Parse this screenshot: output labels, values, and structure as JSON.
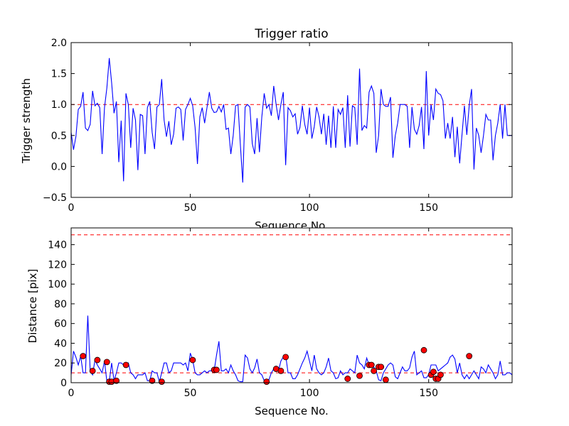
{
  "chart_data": [
    {
      "type": "line",
      "title": "Trigger ratio",
      "xlabel": "Sequence No.",
      "ylabel": "Trigger strength",
      "xlim": [
        0,
        185
      ],
      "ylim": [
        -0.5,
        2.0
      ],
      "xticks": [
        0,
        50,
        100,
        150
      ],
      "yticks": [
        -0.5,
        0.0,
        0.5,
        1.0,
        1.5,
        2.0
      ],
      "ytick_labels": [
        "−0.5",
        "0.0",
        "0.5",
        "1.0",
        "1.5",
        "2.0"
      ],
      "grid": false,
      "colors": {
        "series": "#0000ff",
        "threshold": "#ff0000"
      },
      "reference_lines": [
        {
          "y": 1.0,
          "style": "dashed",
          "color": "#ff0000"
        }
      ],
      "series": [
        {
          "x": [
            0,
            1,
            2,
            3,
            4,
            5,
            6,
            7,
            8,
            9,
            10,
            11,
            12,
            13,
            14,
            15,
            16,
            17,
            18,
            19,
            20,
            21,
            22,
            23,
            24,
            25,
            26,
            27,
            28,
            29,
            30,
            31,
            32,
            33,
            34,
            35,
            36,
            37,
            38,
            39,
            40,
            41,
            42,
            43,
            44,
            45,
            46,
            47,
            48,
            49,
            50,
            51,
            52,
            53,
            54,
            55,
            56,
            57,
            58,
            59,
            60,
            61,
            62,
            63,
            64,
            65,
            66,
            67,
            68,
            69,
            70,
            71,
            72,
            73,
            74,
            75,
            76,
            77,
            78,
            79,
            80,
            81,
            82,
            83,
            84,
            85,
            86,
            87,
            88,
            89,
            90,
            91,
            92,
            93,
            94,
            95,
            96,
            97,
            98,
            99,
            100,
            101,
            102,
            103,
            104,
            105,
            106,
            107,
            108,
            109,
            110,
            111,
            112,
            113,
            114,
            115,
            116,
            117,
            118,
            119,
            120,
            121,
            122,
            123,
            124,
            125,
            126,
            127,
            128,
            129,
            130,
            131,
            132,
            133,
            134,
            135,
            136,
            137,
            138,
            139,
            140,
            141,
            142,
            143,
            144,
            145,
            146,
            147,
            148,
            149,
            150,
            151,
            152,
            153,
            154,
            155,
            156,
            157,
            158,
            159,
            160,
            161,
            162,
            163,
            164,
            165,
            166,
            167,
            168,
            169,
            170,
            171,
            172,
            173,
            174,
            175,
            176,
            177,
            178,
            179,
            180,
            181,
            182,
            183,
            184,
            185
          ],
          "values": [
            0.55,
            0.27,
            0.48,
            0.92,
            0.97,
            1.2,
            0.62,
            0.58,
            0.68,
            1.22,
            0.98,
            1.02,
            0.95,
            0.2,
            0.95,
            1.27,
            1.75,
            1.35,
            0.86,
            1.05,
            0.07,
            0.74,
            -0.24,
            1.18,
            1.0,
            0.3,
            0.94,
            0.75,
            -0.06,
            0.84,
            0.82,
            0.2,
            0.95,
            1.05,
            0.55,
            0.28,
            0.96,
            1.0,
            1.41,
            0.75,
            0.48,
            0.73,
            0.35,
            0.52,
            0.94,
            0.96,
            0.92,
            0.42,
            0.92,
            1.0,
            1.1,
            0.98,
            0.63,
            0.04,
            0.8,
            0.95,
            0.7,
            0.95,
            1.2,
            0.94,
            0.87,
            0.88,
            0.97,
            0.88,
            1.0,
            0.6,
            0.62,
            0.2,
            0.5,
            0.98,
            1.0,
            0.35,
            -0.26,
            0.96,
            1.0,
            0.96,
            0.37,
            0.2,
            0.78,
            0.23,
            0.8,
            1.18,
            0.94,
            1.0,
            0.82,
            1.3,
            1.0,
            0.75,
            1.0,
            1.2,
            0.02,
            0.95,
            0.9,
            0.8,
            0.85,
            0.52,
            0.63,
            0.98,
            0.68,
            0.52,
            0.95,
            0.45,
            0.64,
            0.96,
            0.8,
            0.52,
            0.85,
            0.35,
            0.82,
            0.3,
            0.97,
            0.3,
            0.92,
            0.84,
            0.95,
            0.3,
            1.15,
            0.32,
            0.98,
            0.95,
            0.35,
            1.58,
            0.58,
            0.66,
            0.62,
            1.2,
            1.3,
            1.18,
            0.22,
            0.5,
            1.25,
            1.0,
            0.97,
            0.97,
            1.12,
            0.14,
            0.5,
            0.7,
            1.0,
            1.0,
            1.0,
            0.97,
            0.3,
            0.96,
            0.6,
            0.52,
            0.66,
            0.96,
            0.28,
            1.54,
            0.5,
            1.0,
            0.75,
            1.25,
            1.18,
            1.16,
            1.06,
            0.45,
            0.7,
            0.45,
            0.8,
            0.15,
            0.64,
            0.05,
            0.52,
            0.98,
            0.51,
            0.98,
            1.25,
            -0.05,
            0.62,
            0.5,
            0.22,
            0.5,
            0.84,
            0.75,
            0.75,
            0.1,
            0.5,
            0.7,
            1.0,
            0.45,
            1.0,
            0.5,
            0.5,
            0.5
          ]
        }
      ]
    },
    {
      "type": "line",
      "xlabel": "Sequence No.",
      "ylabel": "Distance [pix]",
      "xlim": [
        0,
        185
      ],
      "ylim": [
        0,
        157
      ],
      "xticks": [
        0,
        50,
        100,
        150
      ],
      "yticks": [
        0,
        20,
        40,
        60,
        80,
        100,
        120,
        140
      ],
      "grid": false,
      "colors": {
        "series": "#0000ff",
        "threshold": "#ff0000",
        "marker": "#ff0000"
      },
      "reference_lines": [
        {
          "y": 150,
          "style": "dashed",
          "color": "#ff0000"
        },
        {
          "y": 10,
          "style": "dashed",
          "color": "#ff0000"
        }
      ],
      "series": [
        {
          "x": [
            0,
            1,
            2,
            3,
            4,
            5,
            6,
            7,
            8,
            9,
            10,
            11,
            12,
            13,
            14,
            15,
            16,
            17,
            18,
            19,
            20,
            21,
            22,
            23,
            24,
            25,
            26,
            27,
            28,
            29,
            30,
            31,
            32,
            33,
            34,
            35,
            36,
            37,
            38,
            39,
            40,
            41,
            42,
            43,
            44,
            45,
            46,
            47,
            48,
            49,
            50,
            51,
            52,
            53,
            54,
            55,
            56,
            57,
            58,
            59,
            60,
            61,
            62,
            63,
            64,
            65,
            66,
            67,
            68,
            69,
            70,
            71,
            72,
            73,
            74,
            75,
            76,
            77,
            78,
            79,
            80,
            81,
            82,
            83,
            84,
            85,
            86,
            87,
            88,
            89,
            90,
            91,
            92,
            93,
            94,
            95,
            96,
            97,
            98,
            99,
            100,
            101,
            102,
            103,
            104,
            105,
            106,
            107,
            108,
            109,
            110,
            111,
            112,
            113,
            114,
            115,
            116,
            117,
            118,
            119,
            120,
            121,
            122,
            123,
            124,
            125,
            126,
            127,
            128,
            129,
            130,
            131,
            132,
            133,
            134,
            135,
            136,
            137,
            138,
            139,
            140,
            141,
            142,
            143,
            144,
            145,
            146,
            147,
            148,
            149,
            150,
            151,
            152,
            153,
            154,
            155,
            156,
            157,
            158,
            159,
            160,
            161,
            162,
            163,
            164,
            165,
            166,
            167,
            168,
            169,
            170,
            171,
            172,
            173,
            174,
            175,
            176,
            177,
            178,
            179,
            180,
            181,
            182,
            183,
            184,
            185
          ],
          "values": [
            8,
            32,
            26,
            18,
            27,
            10,
            10,
            68,
            12,
            8,
            23,
            18,
            14,
            10,
            22,
            1,
            1,
            20,
            2,
            10,
            20,
            20,
            18,
            18,
            20,
            10,
            8,
            4,
            8,
            8,
            8,
            10,
            2,
            2,
            12,
            10,
            10,
            1,
            10,
            20,
            20,
            10,
            12,
            20,
            20,
            20,
            20,
            18,
            20,
            12,
            30,
            23,
            10,
            8,
            8,
            10,
            12,
            10,
            12,
            12,
            12,
            28,
            42,
            12,
            12,
            14,
            10,
            18,
            12,
            8,
            2,
            1,
            1,
            28,
            25,
            14,
            10,
            15,
            24,
            10,
            8,
            2,
            1,
            3,
            10,
            14,
            14,
            12,
            22,
            26,
            28,
            10,
            10,
            4,
            4,
            8,
            14,
            20,
            25,
            32,
            22,
            12,
            28,
            14,
            10,
            8,
            10,
            16,
            25,
            12,
            10,
            4,
            5,
            12,
            8,
            10,
            10,
            14,
            12,
            10,
            28,
            20,
            18,
            14,
            25,
            18,
            16,
            16,
            12,
            3,
            2,
            10,
            14,
            18,
            20,
            18,
            6,
            4,
            10,
            16,
            12,
            12,
            15,
            26,
            32,
            8,
            10,
            12,
            5,
            5,
            8,
            18,
            18,
            18,
            12,
            14,
            16,
            18,
            20,
            26,
            28,
            24,
            10,
            20,
            8,
            4,
            8,
            4,
            8,
            12,
            8,
            4,
            16,
            14,
            10,
            18,
            14,
            10,
            4,
            8,
            22,
            8,
            8,
            10,
            10,
            8
          ]
        },
        {
          "name": "",
          "type": "scatter",
          "x": [
            5,
            9,
            11,
            15,
            16,
            17,
            19,
            23,
            34,
            38,
            51,
            60,
            61,
            82,
            86,
            88,
            90,
            116,
            121,
            125,
            126,
            127,
            129,
            130,
            132,
            148,
            151,
            152,
            153,
            154,
            155,
            167
          ],
          "values": [
            27,
            12,
            23,
            21,
            1,
            1,
            2,
            18,
            2,
            1,
            23,
            13,
            13,
            1,
            14,
            12,
            26,
            4,
            7,
            18,
            18,
            12,
            16,
            16,
            3,
            33,
            8,
            11,
            4,
            4,
            8,
            27
          ]
        }
      ]
    }
  ]
}
